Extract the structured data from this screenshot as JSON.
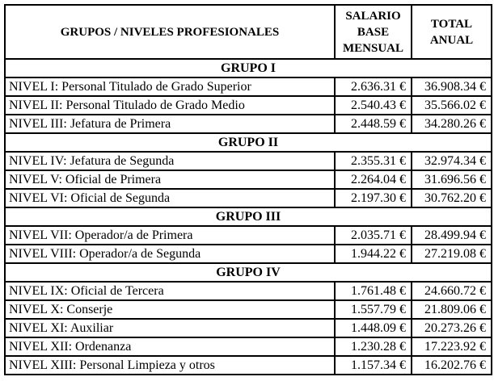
{
  "table": {
    "columns": {
      "grupos": "GRUPOS / NIVELES PROFESIONALES",
      "salario_base_mensual": "SALARIO\nBASE\nMENSUAL",
      "total_anual": "TOTAL\nANUAL"
    },
    "groups": [
      {
        "label": "GRUPO I",
        "rows": [
          {
            "level": "NIVEL I: Personal Titulado de Grado Superior",
            "monthly": "2.636.31 €",
            "annual": "36.908.34 €"
          },
          {
            "level": "NIVEL II: Personal Titulado de Grado Medio",
            "monthly": "2.540.43 €",
            "annual": "35.566.02 €"
          },
          {
            "level": "NIVEL III: Jefatura de Primera",
            "monthly": "2.448.59 €",
            "annual": "34.280.26 €"
          }
        ]
      },
      {
        "label": "GRUPO II",
        "rows": [
          {
            "level": "NIVEL IV: Jefatura de Segunda",
            "monthly": "2.355.31 €",
            "annual": "32.974.34 €"
          },
          {
            "level": "NIVEL V: Oficial de Primera",
            "monthly": "2.264.04 €",
            "annual": "31.696.56 €"
          },
          {
            "level": "NIVEL VI: Oficial de Segunda",
            "monthly": "2.197.30 €",
            "annual": "30.762.20 €"
          }
        ]
      },
      {
        "label": "GRUPO III",
        "rows": [
          {
            "level": "NIVEL VII: Operador/a de Primera",
            "monthly": "2.035.71 €",
            "annual": "28.499.94 €"
          },
          {
            "level": "NIVEL VIII: Operador/a de Segunda",
            "monthly": "1.944.22 €",
            "annual": "27.219.08 €"
          }
        ]
      },
      {
        "label": "GRUPO IV",
        "rows": [
          {
            "level": "NIVEL IX: Oficial de Tercera",
            "monthly": "1.761.48 €",
            "annual": "24.660.72 €"
          },
          {
            "level": "NIVEL X: Conserje",
            "monthly": "1.557.79 €",
            "annual": "21.809.06 €"
          },
          {
            "level": "NIVEL XI: Auxiliar",
            "monthly": "1.448.09 €",
            "annual": "20.273.26 €"
          },
          {
            "level": "NIVEL XII: Ordenanza",
            "monthly": "1.230.28 €",
            "annual": "17.223.92 €"
          },
          {
            "level": "NIVEL XIII: Personal Limpieza y otros",
            "monthly": "1.157.34 €",
            "annual": "16.202.76 €"
          }
        ]
      }
    ]
  }
}
